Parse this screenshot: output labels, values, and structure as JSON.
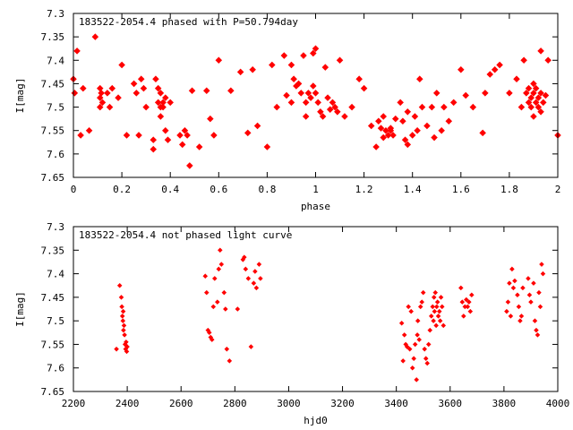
{
  "colors": {
    "data": "#ff0000",
    "axis": "#000000",
    "background": "#ffffff"
  },
  "chart_data": [
    {
      "type": "scatter",
      "title": "183522-2054.4 phased with P=50.794day",
      "xlabel": "phase",
      "ylabel": "I[mag]",
      "xlim": [
        0,
        2
      ],
      "ylim": [
        7.65,
        7.3
      ],
      "y_inverted": true,
      "marker": "filled-diamond",
      "xticks": [
        0,
        0.2,
        0.4,
        0.6,
        0.8,
        1,
        1.2,
        1.4,
        1.6,
        1.8,
        2
      ],
      "xtick_labels": [
        "0",
        "0.2",
        "0.4",
        "0.6",
        "0.8",
        "1",
        "1.2",
        "1.4",
        "1.6",
        "1.8",
        "2"
      ],
      "yticks": [
        7.3,
        7.35,
        7.4,
        7.45,
        7.5,
        7.55,
        7.6,
        7.65
      ],
      "ytick_labels": [
        "7.3",
        "7.35",
        "7.4",
        "7.45",
        "7.5",
        "7.55",
        "7.6",
        "7.65"
      ],
      "points": [
        [
          0.0,
          7.44
        ],
        [
          0.005,
          7.47
        ],
        [
          0.015,
          7.38
        ],
        [
          0.03,
          7.56
        ],
        [
          0.04,
          7.46
        ],
        [
          0.065,
          7.55
        ],
        [
          0.09,
          7.35
        ],
        [
          0.11,
          7.46
        ],
        [
          0.11,
          7.48
        ],
        [
          0.11,
          7.5
        ],
        [
          0.115,
          7.47
        ],
        [
          0.12,
          7.49
        ],
        [
          0.14,
          7.47
        ],
        [
          0.15,
          7.5
        ],
        [
          0.16,
          7.46
        ],
        [
          0.185,
          7.48
        ],
        [
          0.2,
          7.41
        ],
        [
          0.22,
          7.56
        ],
        [
          0.25,
          7.45
        ],
        [
          0.26,
          7.47
        ],
        [
          0.27,
          7.56
        ],
        [
          0.28,
          7.44
        ],
        [
          0.29,
          7.46
        ],
        [
          0.3,
          7.5
        ],
        [
          0.33,
          7.59
        ],
        [
          0.33,
          7.57
        ],
        [
          0.34,
          7.44
        ],
        [
          0.35,
          7.46
        ],
        [
          0.35,
          7.49
        ],
        [
          0.36,
          7.47
        ],
        [
          0.36,
          7.5
        ],
        [
          0.36,
          7.52
        ],
        [
          0.37,
          7.49
        ],
        [
          0.37,
          7.5
        ],
        [
          0.38,
          7.48
        ],
        [
          0.38,
          7.55
        ],
        [
          0.39,
          7.57
        ],
        [
          0.4,
          7.49
        ],
        [
          0.44,
          7.56
        ],
        [
          0.45,
          7.58
        ],
        [
          0.46,
          7.55
        ],
        [
          0.47,
          7.56
        ],
        [
          0.48,
          7.625
        ],
        [
          0.49,
          7.465
        ],
        [
          0.52,
          7.585
        ],
        [
          0.55,
          7.465
        ],
        [
          0.565,
          7.525
        ],
        [
          0.58,
          7.56
        ],
        [
          0.6,
          7.4
        ],
        [
          0.65,
          7.465
        ],
        [
          0.69,
          7.425
        ],
        [
          0.72,
          7.555
        ],
        [
          0.74,
          7.42
        ],
        [
          0.76,
          7.54
        ],
        [
          0.8,
          7.585
        ],
        [
          0.82,
          7.41
        ],
        [
          0.84,
          7.5
        ],
        [
          0.87,
          7.39
        ],
        [
          0.88,
          7.475
        ],
        [
          0.9,
          7.41
        ],
        [
          0.9,
          7.49
        ],
        [
          0.91,
          7.44
        ],
        [
          0.92,
          7.455
        ],
        [
          0.93,
          7.45
        ],
        [
          0.94,
          7.47
        ],
        [
          0.95,
          7.39
        ],
        [
          0.96,
          7.49
        ],
        [
          0.96,
          7.52
        ],
        [
          0.97,
          7.47
        ],
        [
          0.98,
          7.48
        ],
        [
          0.99,
          7.385
        ],
        [
          0.99,
          7.455
        ],
        [
          1.0,
          7.375
        ],
        [
          1.0,
          7.47
        ],
        [
          1.01,
          7.49
        ],
        [
          1.02,
          7.51
        ],
        [
          1.03,
          7.52
        ],
        [
          1.04,
          7.415
        ],
        [
          1.05,
          7.48
        ],
        [
          1.06,
          7.505
        ],
        [
          1.07,
          7.49
        ],
        [
          1.08,
          7.5
        ],
        [
          1.09,
          7.51
        ],
        [
          1.1,
          7.4
        ],
        [
          1.12,
          7.52
        ],
        [
          1.15,
          7.5
        ],
        [
          1.18,
          7.44
        ],
        [
          1.2,
          7.46
        ],
        [
          1.23,
          7.54
        ],
        [
          1.25,
          7.585
        ],
        [
          1.26,
          7.53
        ],
        [
          1.27,
          7.545
        ],
        [
          1.28,
          7.52
        ],
        [
          1.28,
          7.565
        ],
        [
          1.29,
          7.55
        ],
        [
          1.3,
          7.56
        ],
        [
          1.31,
          7.55
        ],
        [
          1.31,
          7.545
        ],
        [
          1.32,
          7.56
        ],
        [
          1.33,
          7.525
        ],
        [
          1.35,
          7.49
        ],
        [
          1.36,
          7.53
        ],
        [
          1.37,
          7.57
        ],
        [
          1.38,
          7.58
        ],
        [
          1.38,
          7.51
        ],
        [
          1.4,
          7.56
        ],
        [
          1.41,
          7.52
        ],
        [
          1.42,
          7.55
        ],
        [
          1.43,
          7.44
        ],
        [
          1.44,
          7.5
        ],
        [
          1.46,
          7.54
        ],
        [
          1.48,
          7.5
        ],
        [
          1.49,
          7.565
        ],
        [
          1.5,
          7.47
        ],
        [
          1.52,
          7.55
        ],
        [
          1.53,
          7.5
        ],
        [
          1.55,
          7.53
        ],
        [
          1.57,
          7.49
        ],
        [
          1.6,
          7.42
        ],
        [
          1.62,
          7.475
        ],
        [
          1.65,
          7.5
        ],
        [
          1.69,
          7.555
        ],
        [
          1.7,
          7.47
        ],
        [
          1.72,
          7.43
        ],
        [
          1.74,
          7.42
        ],
        [
          1.76,
          7.41
        ],
        [
          1.8,
          7.47
        ],
        [
          1.83,
          7.44
        ],
        [
          1.85,
          7.5
        ],
        [
          1.86,
          7.4
        ],
        [
          1.87,
          7.47
        ],
        [
          1.88,
          7.46
        ],
        [
          1.88,
          7.49
        ],
        [
          1.89,
          7.48
        ],
        [
          1.89,
          7.5
        ],
        [
          1.9,
          7.45
        ],
        [
          1.9,
          7.47
        ],
        [
          1.9,
          7.52
        ],
        [
          1.91,
          7.49
        ],
        [
          1.91,
          7.46
        ],
        [
          1.92,
          7.48
        ],
        [
          1.92,
          7.5
        ],
        [
          1.93,
          7.47
        ],
        [
          1.93,
          7.38
        ],
        [
          1.93,
          7.51
        ],
        [
          1.94,
          7.49
        ],
        [
          1.95,
          7.475
        ],
        [
          1.96,
          7.4
        ],
        [
          2.0,
          7.56
        ]
      ]
    },
    {
      "type": "scatter",
      "title": "183522-2054.4 not phased light curve",
      "xlabel": "hjd0",
      "ylabel": "I[mag]",
      "xlim": [
        2200,
        4000
      ],
      "ylim": [
        7.65,
        7.3
      ],
      "y_inverted": true,
      "marker": "small-diamond",
      "xticks": [
        2200,
        2400,
        2600,
        2800,
        3000,
        3200,
        3400,
        3600,
        3800,
        4000
      ],
      "xtick_labels": [
        "2200",
        "2400",
        "2600",
        "2800",
        "3000",
        "3200",
        "3400",
        "3600",
        "3800",
        "4000"
      ],
      "yticks": [
        7.3,
        7.35,
        7.4,
        7.45,
        7.5,
        7.55,
        7.6,
        7.65
      ],
      "ytick_labels": [
        "7.3",
        "7.35",
        "7.4",
        "7.45",
        "7.5",
        "7.55",
        "7.6",
        "7.65"
      ],
      "points": [
        [
          2360,
          7.56
        ],
        [
          2372,
          7.425
        ],
        [
          2378,
          7.45
        ],
        [
          2380,
          7.47
        ],
        [
          2382,
          7.49
        ],
        [
          2384,
          7.5
        ],
        [
          2385,
          7.48
        ],
        [
          2386,
          7.52
        ],
        [
          2388,
          7.51
        ],
        [
          2390,
          7.53
        ],
        [
          2392,
          7.55
        ],
        [
          2394,
          7.56
        ],
        [
          2396,
          7.545
        ],
        [
          2398,
          7.565
        ],
        [
          2400,
          7.555
        ],
        [
          2690,
          7.405
        ],
        [
          2695,
          7.44
        ],
        [
          2700,
          7.52
        ],
        [
          2705,
          7.525
        ],
        [
          2710,
          7.535
        ],
        [
          2715,
          7.54
        ],
        [
          2720,
          7.47
        ],
        [
          2725,
          7.41
        ],
        [
          2735,
          7.46
        ],
        [
          2740,
          7.39
        ],
        [
          2745,
          7.35
        ],
        [
          2750,
          7.38
        ],
        [
          2760,
          7.44
        ],
        [
          2765,
          7.475
        ],
        [
          2770,
          7.56
        ],
        [
          2780,
          7.585
        ],
        [
          2810,
          7.475
        ],
        [
          2830,
          7.37
        ],
        [
          2835,
          7.365
        ],
        [
          2840,
          7.39
        ],
        [
          2850,
          7.41
        ],
        [
          2860,
          7.555
        ],
        [
          2870,
          7.42
        ],
        [
          2875,
          7.395
        ],
        [
          2880,
          7.43
        ],
        [
          2890,
          7.38
        ],
        [
          2895,
          7.41
        ],
        [
          3420,
          7.505
        ],
        [
          3425,
          7.585
        ],
        [
          3430,
          7.53
        ],
        [
          3435,
          7.55
        ],
        [
          3440,
          7.555
        ],
        [
          3445,
          7.47
        ],
        [
          3450,
          7.56
        ],
        [
          3455,
          7.48
        ],
        [
          3460,
          7.6
        ],
        [
          3465,
          7.58
        ],
        [
          3470,
          7.55
        ],
        [
          3475,
          7.625
        ],
        [
          3478,
          7.53
        ],
        [
          3480,
          7.5
        ],
        [
          3485,
          7.54
        ],
        [
          3490,
          7.47
        ],
        [
          3495,
          7.46
        ],
        [
          3500,
          7.44
        ],
        [
          3505,
          7.56
        ],
        [
          3510,
          7.58
        ],
        [
          3515,
          7.59
        ],
        [
          3520,
          7.55
        ],
        [
          3525,
          7.52
        ],
        [
          3530,
          7.49
        ],
        [
          3535,
          7.47
        ],
        [
          3538,
          7.5
        ],
        [
          3540,
          7.45
        ],
        [
          3542,
          7.48
        ],
        [
          3545,
          7.44
        ],
        [
          3548,
          7.51
        ],
        [
          3550,
          7.47
        ],
        [
          3553,
          7.46
        ],
        [
          3556,
          7.49
        ],
        [
          3560,
          7.48
        ],
        [
          3563,
          7.5
        ],
        [
          3566,
          7.45
        ],
        [
          3570,
          7.47
        ],
        [
          3575,
          7.51
        ],
        [
          3640,
          7.43
        ],
        [
          3645,
          7.46
        ],
        [
          3650,
          7.49
        ],
        [
          3655,
          7.47
        ],
        [
          3660,
          7.455
        ],
        [
          3665,
          7.47
        ],
        [
          3670,
          7.46
        ],
        [
          3675,
          7.48
        ],
        [
          3680,
          7.445
        ],
        [
          3810,
          7.48
        ],
        [
          3815,
          7.46
        ],
        [
          3820,
          7.42
        ],
        [
          3825,
          7.49
        ],
        [
          3830,
          7.39
        ],
        [
          3835,
          7.43
        ],
        [
          3840,
          7.415
        ],
        [
          3850,
          7.445
        ],
        [
          3855,
          7.47
        ],
        [
          3860,
          7.5
        ],
        [
          3865,
          7.49
        ],
        [
          3870,
          7.43
        ],
        [
          3890,
          7.41
        ],
        [
          3895,
          7.445
        ],
        [
          3900,
          7.46
        ],
        [
          3910,
          7.42
        ],
        [
          3915,
          7.5
        ],
        [
          3920,
          7.52
        ],
        [
          3925,
          7.53
        ],
        [
          3930,
          7.44
        ],
        [
          3935,
          7.47
        ],
        [
          3940,
          7.38
        ],
        [
          3945,
          7.4
        ]
      ]
    }
  ]
}
